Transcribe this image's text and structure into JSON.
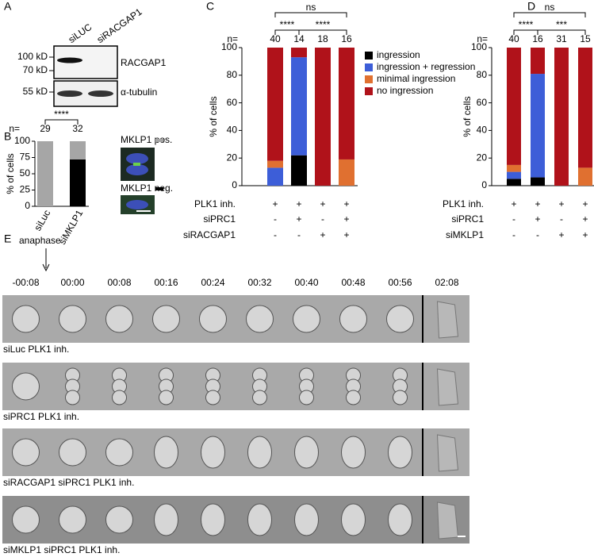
{
  "panels": {
    "a": "A",
    "b": "B",
    "c": "C",
    "d": "D",
    "e": "E"
  },
  "blot": {
    "lanes": [
      "siLUC",
      "siRACGAP1"
    ],
    "markers": [
      "100 kD",
      "70 kD",
      "55 kD"
    ],
    "proteins": [
      "RACGAP1",
      "α-tubulin"
    ]
  },
  "chart_data": [
    {
      "type": "bar",
      "stacked": true,
      "ylabel": "% of cells",
      "categories": [
        "siLuc",
        "siMKLP1"
      ],
      "n_label": "n=",
      "n": [
        29,
        32
      ],
      "significance": [
        "****"
      ],
      "series": [
        {
          "name": "MKLP1 neg.",
          "color": "#000000",
          "values": [
            0,
            72
          ]
        },
        {
          "name": "MKLP1 pos.",
          "color": "#a6a6a6",
          "values": [
            100,
            28
          ]
        }
      ],
      "ylim": [
        0,
        100
      ],
      "yticks": [
        0,
        25,
        50,
        75,
        100
      ]
    },
    {
      "type": "bar",
      "stacked": true,
      "ylabel": "% of cells",
      "n_label": "n=",
      "n": [
        40,
        14,
        18,
        16
      ],
      "significance": [
        "ns",
        "****",
        "****"
      ],
      "conditions": [
        {
          "label": "PLK1 inh.",
          "values": [
            "+",
            "+",
            "+",
            "+"
          ]
        },
        {
          "label": "siPRC1",
          "values": [
            "-",
            "+",
            "-",
            "+"
          ]
        },
        {
          "label": "siRACGAP1",
          "values": [
            "-",
            "-",
            "+",
            "+"
          ]
        }
      ],
      "series": [
        {
          "name": "ingression",
          "color": "#000000",
          "values": [
            0,
            22,
            0,
            0
          ]
        },
        {
          "name": "ingression + regression",
          "color": "#3d5ed8",
          "values": [
            13,
            71,
            0,
            0
          ]
        },
        {
          "name": "minimal ingression",
          "color": "#e07030",
          "values": [
            5,
            0,
            0,
            19
          ]
        },
        {
          "name": "no ingression",
          "color": "#b0121a",
          "values": [
            82,
            7,
            100,
            81
          ]
        }
      ],
      "ylim": [
        0,
        100
      ],
      "yticks": [
        0,
        20,
        40,
        60,
        80,
        100
      ],
      "legend": "right"
    },
    {
      "type": "bar",
      "stacked": true,
      "ylabel": "% of cells",
      "n_label": "n=",
      "n": [
        40,
        16,
        31,
        15
      ],
      "significance": [
        "ns",
        "****",
        "***"
      ],
      "conditions": [
        {
          "label": "PLK1 inh.",
          "values": [
            "+",
            "+",
            "+",
            "+"
          ]
        },
        {
          "label": "siPRC1",
          "values": [
            "-",
            "+",
            "-",
            "+"
          ]
        },
        {
          "label": "siMKLP1",
          "values": [
            "-",
            "-",
            "+",
            "+"
          ]
        }
      ],
      "series": [
        {
          "name": "ingression",
          "color": "#000000",
          "values": [
            5,
            6,
            0,
            0
          ]
        },
        {
          "name": "ingression + regression",
          "color": "#3d5ed8",
          "values": [
            5,
            75,
            0,
            0
          ]
        },
        {
          "name": "minimal ingression",
          "color": "#e07030",
          "values": [
            5,
            0,
            0,
            13
          ]
        },
        {
          "name": "no ingression",
          "color": "#b0121a",
          "values": [
            85,
            19,
            100,
            87
          ]
        }
      ],
      "ylim": [
        0,
        100
      ],
      "yticks": [
        0,
        20,
        40,
        60,
        80,
        100
      ]
    }
  ],
  "timelapse": {
    "marker": "anaphase",
    "times": [
      "-00:08",
      "00:00",
      "00:08",
      "00:16",
      "00:24",
      "00:32",
      "00:40",
      "00:48",
      "00:56",
      "02:08"
    ],
    "rows": [
      "siLuc PLK1 inh.",
      "siPRC1 PLK1 inh.",
      "siRACGAP1 siPRC1 PLK1 inh.",
      "siMKLP1 siPRC1 PLK1 inh."
    ]
  }
}
